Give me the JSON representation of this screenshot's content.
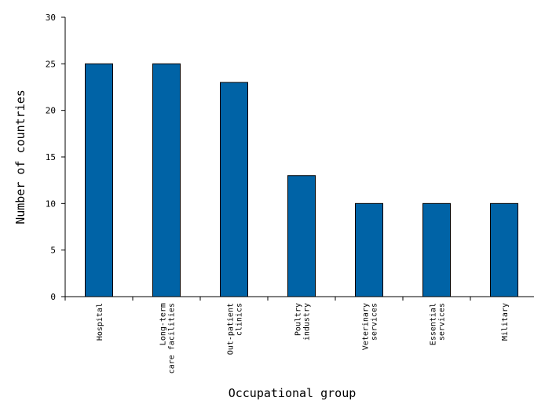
{
  "chart_data": {
    "type": "bar",
    "title": "",
    "xlabel": "Occupational group",
    "ylabel": "Number of countries",
    "ylim": [
      0,
      30
    ],
    "yticks": [
      0,
      5,
      10,
      15,
      20,
      25,
      30
    ],
    "grid": false,
    "legend": "none",
    "bar_color": "#0063a6",
    "categories": [
      [
        "Hospital"
      ],
      [
        "Long-term",
        "care facilities"
      ],
      [
        "Out-patient",
        "clinics"
      ],
      [
        "Poultry",
        "industry"
      ],
      [
        "Veterinary",
        "services"
      ],
      [
        "Essential",
        "services"
      ],
      [
        "Military"
      ]
    ],
    "values": [
      25,
      25,
      23,
      13,
      10,
      10,
      10
    ]
  }
}
